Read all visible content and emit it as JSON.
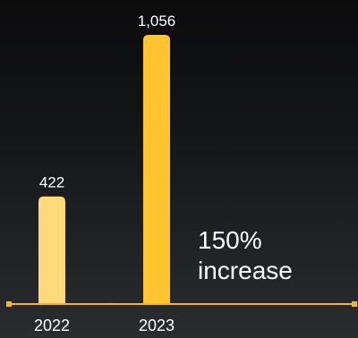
{
  "chart_data": {
    "type": "bar",
    "categories": [
      "2022",
      "2023"
    ],
    "values": [
      422,
      1056
    ],
    "value_labels": [
      "422",
      "1,056"
    ],
    "ylim": [
      0,
      1100
    ],
    "grid": false,
    "annotation": {
      "line1": "150%",
      "line2": "increase"
    }
  },
  "colors": {
    "bar_2022": "#ffd97a",
    "bar_2023": "#ffc42e",
    "axis": "#f2b923",
    "text": "#ffffff"
  }
}
